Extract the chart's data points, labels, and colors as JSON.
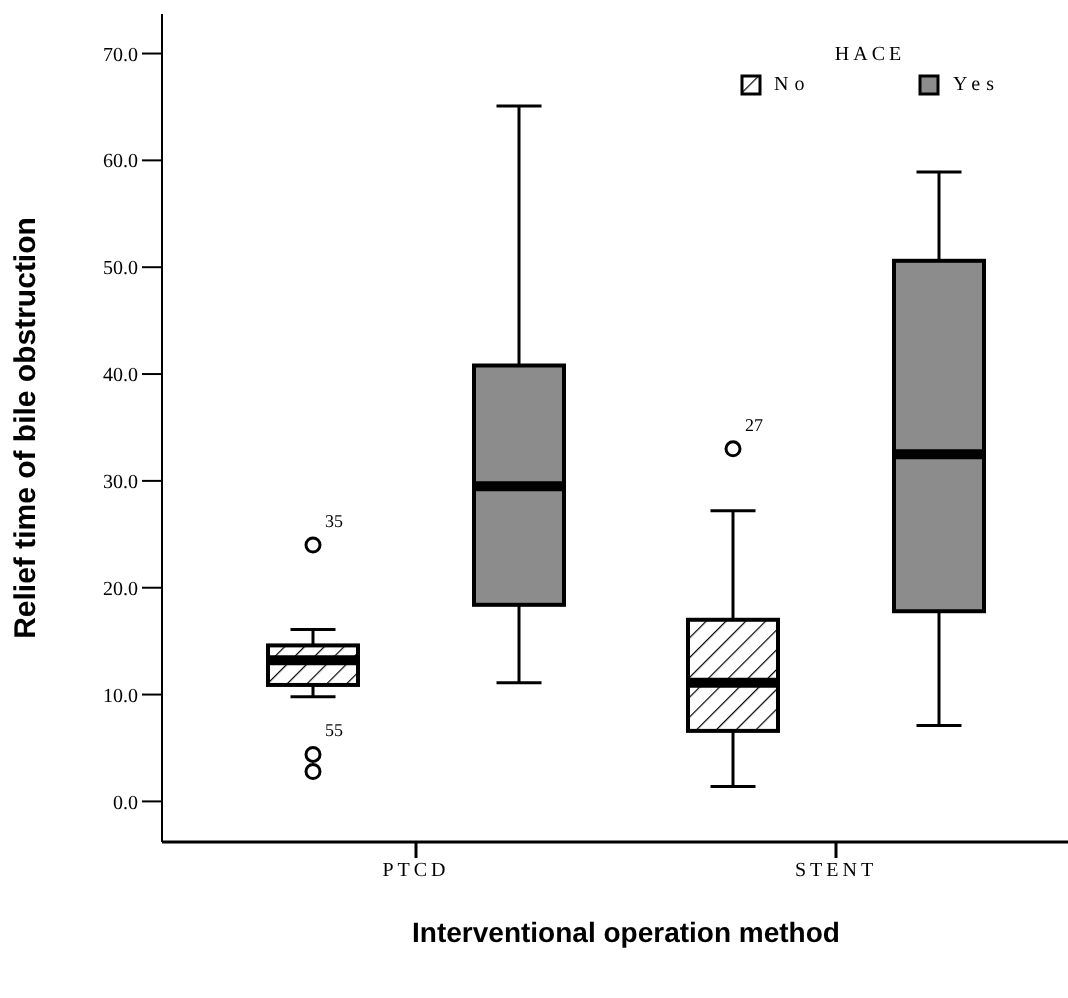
{
  "chart_data": {
    "type": "box",
    "xlabel": "Interventional operation method",
    "ylabel": "Relief time of bile obstruction",
    "legend_title": "HACE",
    "legend": "top right",
    "grid": false,
    "categories": [
      "PTCD",
      "STENT"
    ],
    "ylim": [
      -3.8,
      73.7
    ],
    "yticks": [
      {
        "value": 0,
        "label": "0.0"
      },
      {
        "value": 10,
        "label": "10.0"
      },
      {
        "value": 20,
        "label": "20.0"
      },
      {
        "value": 30,
        "label": "30.0"
      },
      {
        "value": 40,
        "label": "40.0"
      },
      {
        "value": 50,
        "label": "50.0"
      },
      {
        "value": 60,
        "label": "60.0"
      },
      {
        "value": 70,
        "label": "70.0"
      }
    ],
    "series": [
      {
        "name": "No",
        "color": "#000000",
        "boxes": [
          {
            "low": 9.8,
            "q1": 10.9,
            "median": 13.2,
            "q3": 14.6,
            "high": 16.1,
            "outliers": [
              24.0,
              4.4,
              2.8
            ]
          },
          {
            "low": 1.4,
            "q1": 6.6,
            "median": 11.1,
            "q3": 17.0,
            "high": 27.2,
            "outliers": [
              33.0
            ]
          }
        ]
      },
      {
        "name": "Yes",
        "color": "#8c8c8c",
        "boxes": [
          {
            "low": 11.1,
            "q1": 18.4,
            "median": 29.5,
            "q3": 40.8,
            "high": 65.1
          },
          {
            "low": 7.1,
            "q1": 17.8,
            "median": 32.5,
            "q3": 50.6,
            "high": 58.9
          }
        ]
      }
    ],
    "annotations": [
      "35",
      "55",
      "27"
    ]
  }
}
